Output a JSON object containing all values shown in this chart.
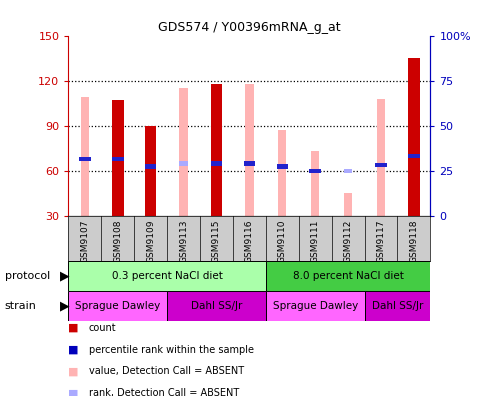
{
  "title": "GDS574 / Y00396mRNA_g_at",
  "samples": [
    "GSM9107",
    "GSM9108",
    "GSM9109",
    "GSM9113",
    "GSM9115",
    "GSM9116",
    "GSM9110",
    "GSM9111",
    "GSM9112",
    "GSM9117",
    "GSM9118"
  ],
  "red_bar_heights": [
    0,
    107,
    90,
    0,
    118,
    0,
    0,
    0,
    0,
    0,
    135
  ],
  "pink_bar_heights": [
    109,
    0,
    0,
    115,
    0,
    118,
    87,
    73,
    45,
    108,
    0
  ],
  "blue_square_y": [
    68,
    68,
    63,
    65,
    65,
    65,
    63,
    60,
    0,
    64,
    70
  ],
  "blue_square_present": [
    true,
    true,
    true,
    false,
    true,
    true,
    true,
    true,
    false,
    true,
    true
  ],
  "light_blue_y": [
    0,
    0,
    0,
    65,
    0,
    0,
    0,
    0,
    60,
    0,
    0
  ],
  "light_blue_present": [
    false,
    false,
    false,
    true,
    false,
    false,
    false,
    false,
    true,
    false,
    false
  ],
  "ylim": [
    30,
    150
  ],
  "yticks_left": [
    30,
    60,
    90,
    120,
    150
  ],
  "yticks_right": [
    0,
    25,
    50,
    75,
    100
  ],
  "yticklabels_right": [
    "0",
    "25",
    "50",
    "75",
    "100%"
  ],
  "left_color": "#cc0000",
  "right_color": "#0000bb",
  "pink_color": "#ffb3b3",
  "light_blue_color": "#aaaaff",
  "red_bar_color": "#cc0000",
  "protocol_groups": [
    {
      "label": "0.3 percent NaCl diet",
      "start": 0,
      "end": 5,
      "color": "#aaffaa"
    },
    {
      "label": "8.0 percent NaCl diet",
      "start": 6,
      "end": 10,
      "color": "#44cc44"
    }
  ],
  "strain_groups": [
    {
      "label": "Sprague Dawley",
      "start": 0,
      "end": 2,
      "color": "#ff66ff"
    },
    {
      "label": "Dahl SS/Jr",
      "start": 3,
      "end": 5,
      "color": "#cc00cc"
    },
    {
      "label": "Sprague Dawley",
      "start": 6,
      "end": 8,
      "color": "#ff66ff"
    },
    {
      "label": "Dahl SS/Jr",
      "start": 9,
      "end": 10,
      "color": "#cc00cc"
    }
  ],
  "legend_items": [
    {
      "label": "count",
      "color": "#cc0000"
    },
    {
      "label": "percentile rank within the sample",
      "color": "#0000bb"
    },
    {
      "label": "value, Detection Call = ABSENT",
      "color": "#ffb3b3"
    },
    {
      "label": "rank, Detection Call = ABSENT",
      "color": "#aaaaff"
    }
  ],
  "bg_color": "#ffffff"
}
